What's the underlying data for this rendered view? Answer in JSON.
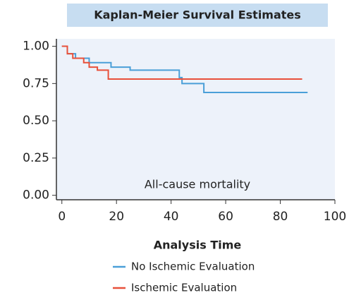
{
  "chart_data": {
    "type": "step",
    "title": "Kaplan-Meier Survival Estimates",
    "annotation": "All-cause mortality",
    "x_label": "Analysis Time",
    "xlim": [
      -2,
      100
    ],
    "xticks": [
      0,
      20,
      40,
      60,
      80,
      100
    ],
    "ylim": [
      -0.03,
      1.05
    ],
    "yticks": [
      {
        "value": 0,
        "label": "0.00"
      },
      {
        "value": 0.25,
        "label": "0.25"
      },
      {
        "value": 0.5,
        "label": "0.50"
      },
      {
        "value": 0.75,
        "label": "0.75"
      },
      {
        "value": 1,
        "label": "1.00"
      }
    ],
    "series": [
      {
        "name": "No Ischemic Evaluation",
        "color": "#4a9fd8",
        "x": [
          0,
          2,
          5,
          10,
          18,
          25,
          43,
          44,
          52,
          90
        ],
        "values": [
          1.0,
          0.95,
          0.92,
          0.89,
          0.86,
          0.84,
          0.79,
          0.75,
          0.69,
          0.69
        ]
      },
      {
        "name": "Ischemic Evaluation",
        "color": "#e8503a",
        "x": [
          0,
          2,
          4,
          8,
          10,
          13,
          17,
          88
        ],
        "values": [
          1.0,
          0.95,
          0.92,
          0.89,
          0.86,
          0.84,
          0.78,
          0.78
        ]
      }
    ]
  }
}
